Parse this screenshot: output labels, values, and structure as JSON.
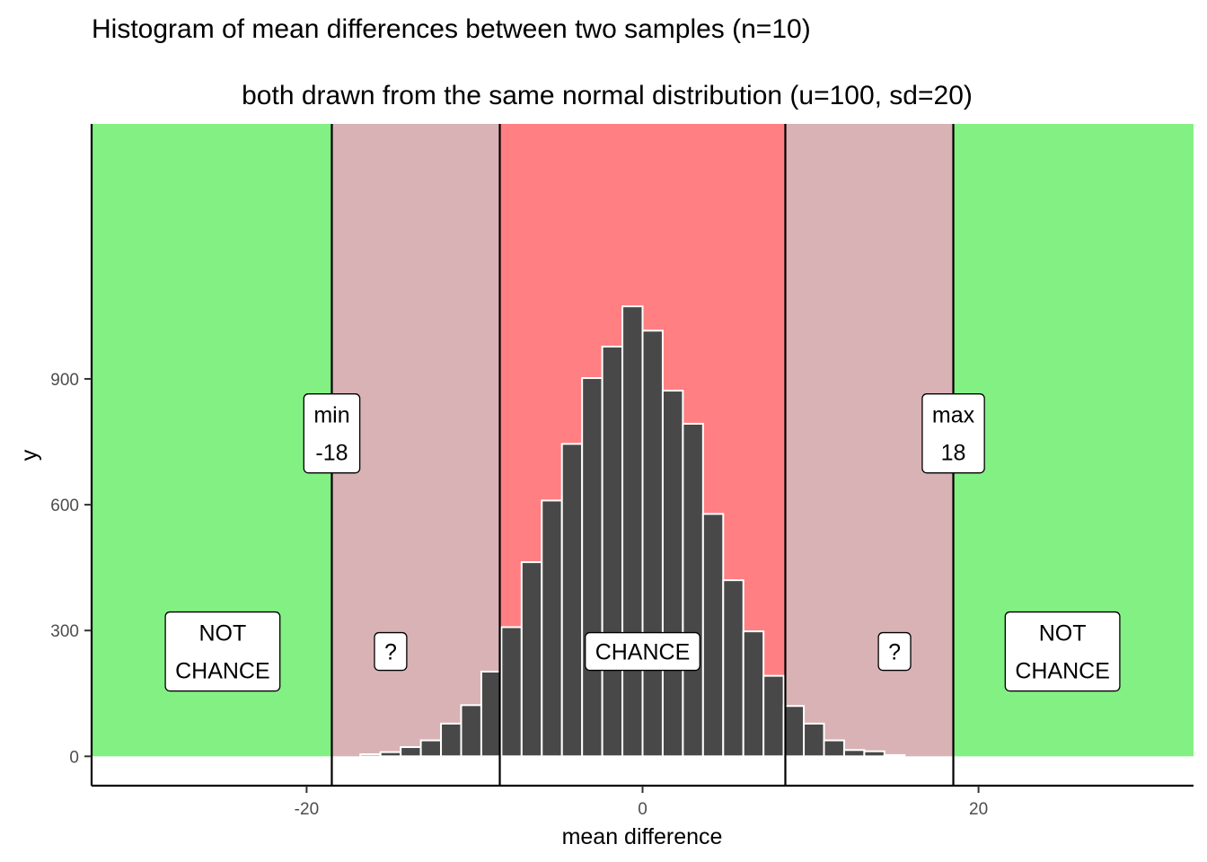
{
  "chart_data": {
    "type": "bar",
    "title": "Histogram of mean differences between two samples (n=10)",
    "subtitle": "both drawn from the same normal distribution (u=100, sd=20)",
    "xlabel": "mean difference",
    "ylabel": "y",
    "xlim": [
      -32.8,
      32.8
    ],
    "ylim": [
      -70,
      1508
    ],
    "x_ticks": [
      -20,
      0,
      20
    ],
    "x_tick_labels": [
      "-20",
      "0",
      "20"
    ],
    "y_ticks": [
      0,
      300,
      600,
      900
    ],
    "y_tick_labels": [
      "0",
      "300",
      "600",
      "900"
    ],
    "grid": false,
    "bin_width": 1.2,
    "bins": {
      "x": [
        -16.2,
        -15.0,
        -13.8,
        -12.6,
        -11.4,
        -10.2,
        -9.0,
        -7.8,
        -6.6,
        -5.4,
        -4.2,
        -3.0,
        -1.8,
        -0.6,
        0.6,
        1.8,
        3.0,
        4.2,
        5.4,
        6.6,
        7.8,
        9.0,
        10.2,
        11.4,
        12.6,
        13.8,
        15.0
      ],
      "y": [
        5,
        10,
        22,
        38,
        78,
        122,
        202,
        308,
        463,
        610,
        745,
        902,
        977,
        1073,
        1015,
        872,
        793,
        578,
        420,
        298,
        192,
        120,
        78,
        38,
        15,
        12,
        3
      ]
    },
    "bar_fill": "#484848",
    "bar_outline": "#ffffff",
    "regions": [
      {
        "name": "not-chance-left",
        "from": -32.8,
        "to": -18.5,
        "color": "#83f083"
      },
      {
        "name": "uncertain-left",
        "from": -18.5,
        "to": -8.5,
        "color": "#d8b2b4"
      },
      {
        "name": "chance",
        "from": -8.5,
        "to": 8.5,
        "color": "#ff7f83"
      },
      {
        "name": "uncertain-right",
        "from": 8.5,
        "to": 18.5,
        "color": "#d8b2b4"
      },
      {
        "name": "not-chance-right",
        "from": 18.5,
        "to": 32.8,
        "color": "#83f083"
      }
    ],
    "region_y_range": [
      0,
      1508
    ],
    "vlines": [
      -18.5,
      -8.5,
      8.5,
      18.5
    ],
    "annotations": [
      {
        "id": "not-chance-left",
        "lines": [
          "NOT",
          "CHANCE"
        ],
        "x": -25,
        "y": 250
      },
      {
        "id": "question-left",
        "lines": [
          "?"
        ],
        "x": -15,
        "y": 250
      },
      {
        "id": "chance",
        "lines": [
          "CHANCE"
        ],
        "x": 0,
        "y": 250
      },
      {
        "id": "question-right",
        "lines": [
          "?"
        ],
        "x": 15,
        "y": 250
      },
      {
        "id": "not-chance-right",
        "lines": [
          "NOT",
          "CHANCE"
        ],
        "x": 25,
        "y": 250
      },
      {
        "id": "min-label",
        "lines": [
          "min",
          "-18"
        ],
        "x": -18.5,
        "y": 770
      },
      {
        "id": "max-label",
        "lines": [
          "max",
          "18"
        ],
        "x": 18.5,
        "y": 770
      }
    ]
  }
}
